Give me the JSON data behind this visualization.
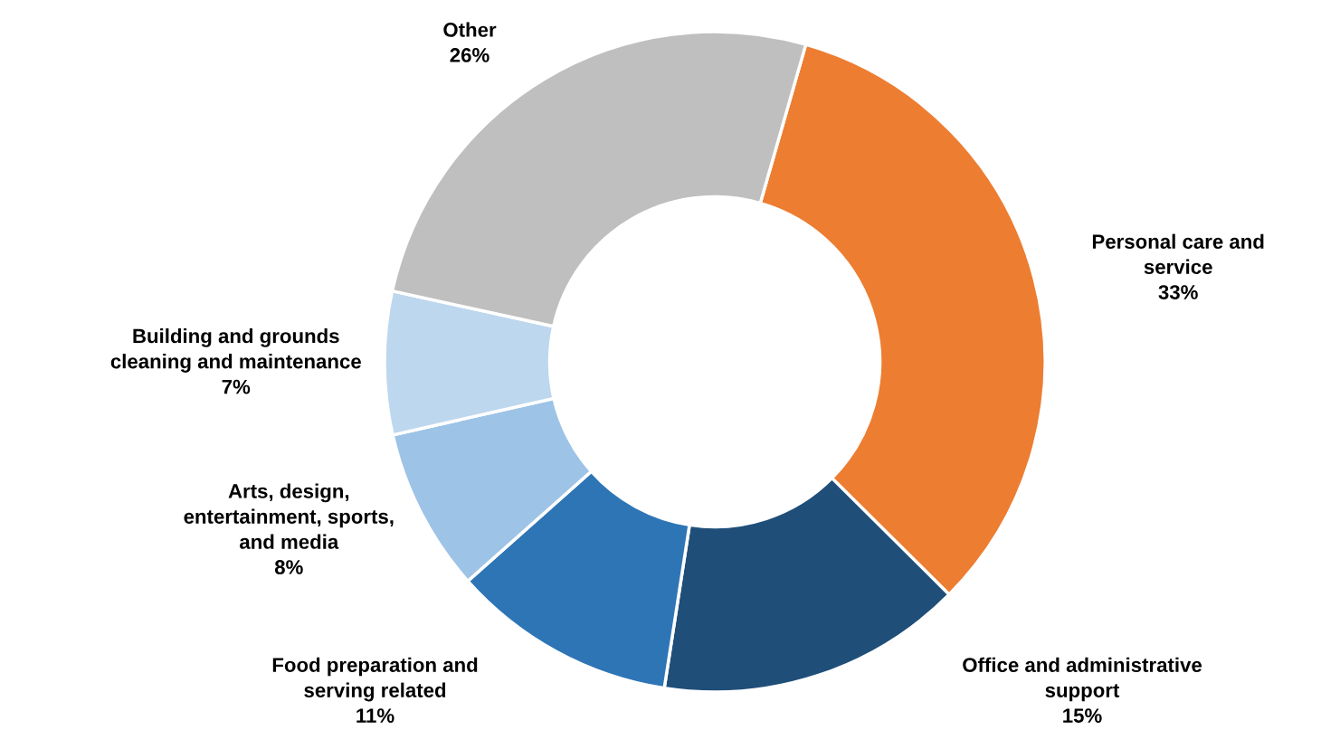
{
  "chart_data": {
    "type": "donut",
    "categories": [
      "Personal care and\nservice",
      "Office and administrative\nsupport",
      "Food preparation and\nserving related",
      "Arts, design,\nentertainment, sports,\nand media",
      "Building and grounds\ncleaning and maintenance",
      "Other"
    ],
    "values": [
      33,
      15,
      11,
      8,
      7,
      26
    ],
    "colors": [
      "#ed7d31",
      "#1f4e79",
      "#2e75b6",
      "#9dc3e6",
      "#bdd7ee",
      "#bfbfbf"
    ],
    "value_labels": [
      "33%",
      "15%",
      "11%",
      "8%",
      "7%",
      "26%"
    ],
    "legend": false
  }
}
